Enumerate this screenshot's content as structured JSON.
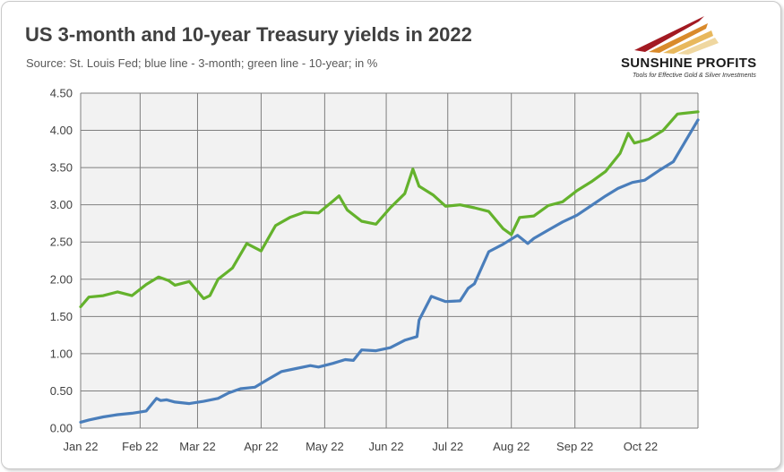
{
  "title": "US 3-month and 10-year Treasury yields in 2022",
  "subtitle": "Source: St. Louis Fed; blue line - 3-month; green line - 10-year; in %",
  "logo": {
    "name": "SUNSHINE PROFITS",
    "tagline": "Tools for Effective Gold & Silver Investments"
  },
  "colors": {
    "plot_background": "#f2f2f2",
    "gridline": "#7f7f7f",
    "three_month": "#4a7ebb",
    "ten_year": "#64b22c"
  },
  "chart_data": {
    "type": "line",
    "title": "US 3-month and 10-year Treasury yields in 2022",
    "xlabel": "",
    "ylabel": "",
    "x_ticks": [
      "Jan 22",
      "Feb 22",
      "Mar 22",
      "Apr 22",
      "May 22",
      "Jun 22",
      "Jul 22",
      "Aug 22",
      "Sep 22",
      "Oct 22"
    ],
    "y_ticks": [
      "0.00",
      "0.50",
      "1.00",
      "1.50",
      "2.00",
      "2.50",
      "3.00",
      "3.50",
      "4.00",
      "4.50"
    ],
    "ylim": [
      0,
      4.5
    ],
    "xlim": [
      "2022-01-03",
      "2022-10-31"
    ],
    "grid": true,
    "legend": "none",
    "series": [
      {
        "key": "three_month",
        "x": [
          "2022-01-03",
          "2022-01-07",
          "2022-01-14",
          "2022-01-21",
          "2022-01-28",
          "2022-02-04",
          "2022-02-09",
          "2022-02-11",
          "2022-02-14",
          "2022-02-18",
          "2022-02-25",
          "2022-03-04",
          "2022-03-11",
          "2022-03-16",
          "2022-03-22",
          "2022-03-29",
          "2022-04-04",
          "2022-04-11",
          "2022-04-18",
          "2022-04-25",
          "2022-04-29",
          "2022-05-06",
          "2022-05-12",
          "2022-05-16",
          "2022-05-20",
          "2022-05-27",
          "2022-06-03",
          "2022-06-10",
          "2022-06-16",
          "2022-06-17",
          "2022-06-23",
          "2022-06-30",
          "2022-07-07",
          "2022-07-11",
          "2022-07-14",
          "2022-07-21",
          "2022-07-28",
          "2022-08-04",
          "2022-08-09",
          "2022-08-12",
          "2022-08-19",
          "2022-08-26",
          "2022-09-02",
          "2022-09-09",
          "2022-09-16",
          "2022-09-22",
          "2022-09-29",
          "2022-10-05",
          "2022-10-12",
          "2022-10-19",
          "2022-10-31"
        ],
        "y": [
          0.08,
          0.11,
          0.15,
          0.18,
          0.2,
          0.23,
          0.4,
          0.37,
          0.38,
          0.35,
          0.33,
          0.36,
          0.4,
          0.47,
          0.53,
          0.55,
          0.65,
          0.76,
          0.8,
          0.84,
          0.82,
          0.87,
          0.92,
          0.91,
          1.05,
          1.04,
          1.08,
          1.18,
          1.23,
          1.45,
          1.77,
          1.7,
          1.71,
          1.88,
          1.94,
          2.37,
          2.47,
          2.59,
          2.48,
          2.55,
          2.66,
          2.77,
          2.86,
          2.99,
          3.12,
          3.22,
          3.3,
          3.33,
          3.46,
          3.58,
          4.14
        ]
      },
      {
        "key": "ten_year",
        "x": [
          "2022-01-03",
          "2022-01-07",
          "2022-01-14",
          "2022-01-21",
          "2022-01-28",
          "2022-02-04",
          "2022-02-10",
          "2022-02-15",
          "2022-02-18",
          "2022-02-25",
          "2022-03-04",
          "2022-03-07",
          "2022-03-11",
          "2022-03-18",
          "2022-03-25",
          "2022-04-01",
          "2022-04-08",
          "2022-04-15",
          "2022-04-22",
          "2022-04-29",
          "2022-05-06",
          "2022-05-09",
          "2022-05-13",
          "2022-05-20",
          "2022-05-27",
          "2022-06-03",
          "2022-06-10",
          "2022-06-14",
          "2022-06-17",
          "2022-06-24",
          "2022-06-30",
          "2022-07-07",
          "2022-07-14",
          "2022-07-21",
          "2022-07-28",
          "2022-08-01",
          "2022-08-05",
          "2022-08-12",
          "2022-08-19",
          "2022-08-26",
          "2022-09-02",
          "2022-09-09",
          "2022-09-16",
          "2022-09-23",
          "2022-09-27",
          "2022-09-30",
          "2022-10-07",
          "2022-10-14",
          "2022-10-21",
          "2022-10-31"
        ],
        "y": [
          1.63,
          1.76,
          1.78,
          1.83,
          1.78,
          1.93,
          2.03,
          1.98,
          1.92,
          1.97,
          1.74,
          1.78,
          2.0,
          2.15,
          2.48,
          2.38,
          2.72,
          2.83,
          2.9,
          2.89,
          3.05,
          3.12,
          2.93,
          2.78,
          2.74,
          2.96,
          3.15,
          3.48,
          3.25,
          3.13,
          2.98,
          3.0,
          2.96,
          2.91,
          2.68,
          2.6,
          2.83,
          2.85,
          2.99,
          3.04,
          3.19,
          3.31,
          3.45,
          3.69,
          3.96,
          3.83,
          3.88,
          4.0,
          4.22,
          4.25
        ]
      }
    ]
  }
}
